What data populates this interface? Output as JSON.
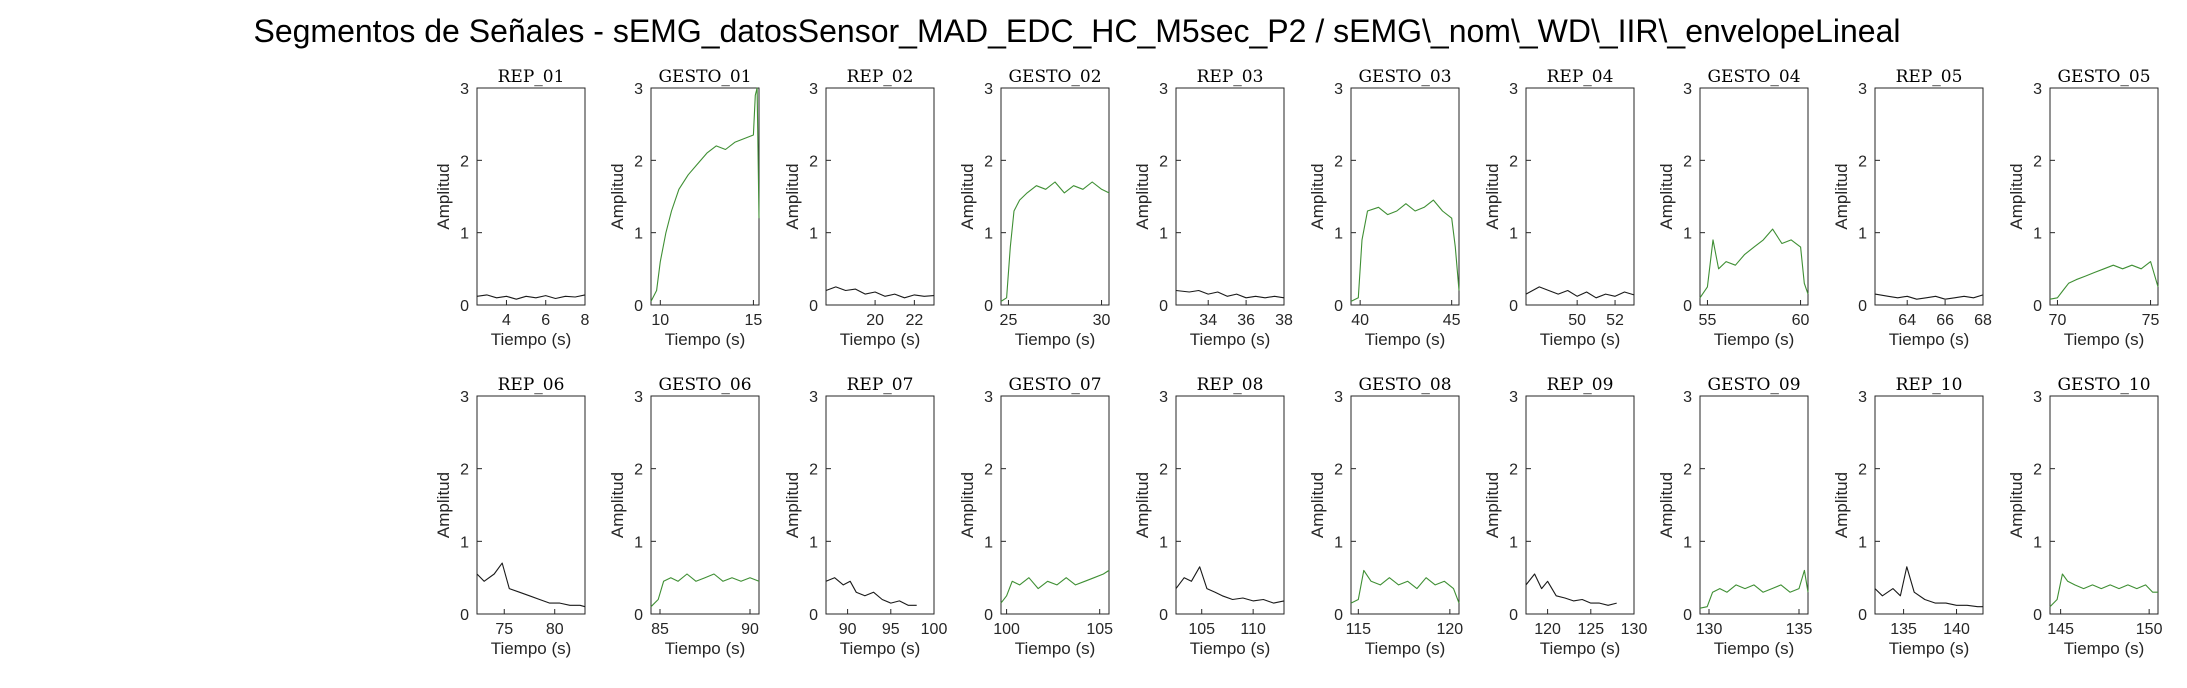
{
  "title": "Segmentos de Señales - sEMG_datosSensor_MAD_EDC_HC_M5sec_P2 / sEMG\\_nom\\_WD\\_IIR\\_envelopeLineal",
  "colors": {
    "rep": "#1a1a1a",
    "gesto": "#3f8f34",
    "axis": "#262626"
  },
  "chart_data": [
    {
      "type": "line",
      "title": "REP_01",
      "xlabel": "Tiempo (s)",
      "ylabel": "Amplitud",
      "xlim": [
        2.5,
        8
      ],
      "ylim": [
        0,
        3
      ],
      "xticks": [
        4,
        6,
        8
      ],
      "yticks": [
        0,
        1,
        2,
        3
      ],
      "kind": "rep",
      "series": [
        {
          "color": "#1a1a1a",
          "x": [
            2.5,
            3,
            3.5,
            4,
            4.5,
            5,
            5.5,
            6,
            6.5,
            7,
            7.5,
            8
          ],
          "y": [
            0.12,
            0.14,
            0.1,
            0.12,
            0.08,
            0.12,
            0.1,
            0.13,
            0.09,
            0.12,
            0.11,
            0.14
          ]
        }
      ]
    },
    {
      "type": "line",
      "title": "GESTO_01",
      "xlabel": "Tiempo (s)",
      "ylabel": "Amplitud",
      "xlim": [
        9.5,
        15.3
      ],
      "ylim": [
        0,
        3
      ],
      "xticks": [
        10,
        15
      ],
      "yticks": [
        0,
        1,
        2,
        3
      ],
      "kind": "gesto",
      "series": [
        {
          "color": "#3f8f34",
          "x": [
            9.5,
            9.8,
            10,
            10.3,
            10.6,
            11,
            11.5,
            12,
            12.5,
            13,
            13.5,
            14,
            14.5,
            15,
            15.1,
            15.2,
            15.3
          ],
          "y": [
            0.05,
            0.2,
            0.6,
            1.0,
            1.3,
            1.6,
            1.8,
            1.95,
            2.1,
            2.2,
            2.15,
            2.25,
            2.3,
            2.35,
            2.9,
            3.0,
            1.2
          ]
        }
      ]
    },
    {
      "type": "line",
      "title": "REP_02",
      "xlabel": "Tiempo (s)",
      "ylabel": "Amplitud",
      "xlim": [
        17.5,
        23
      ],
      "ylim": [
        0,
        3
      ],
      "xticks": [
        20,
        22
      ],
      "yticks": [
        0,
        1,
        2,
        3
      ],
      "kind": "rep",
      "series": [
        {
          "color": "#1a1a1a",
          "x": [
            17.5,
            18,
            18.5,
            19,
            19.5,
            20,
            20.5,
            21,
            21.5,
            22,
            22.5,
            23
          ],
          "y": [
            0.2,
            0.25,
            0.2,
            0.22,
            0.15,
            0.18,
            0.12,
            0.15,
            0.1,
            0.14,
            0.12,
            0.13
          ]
        }
      ]
    },
    {
      "type": "line",
      "title": "GESTO_02",
      "xlabel": "Tiempo (s)",
      "ylabel": "Amplitud",
      "xlim": [
        24.6,
        30.4
      ],
      "ylim": [
        0,
        3
      ],
      "xticks": [
        25,
        30
      ],
      "yticks": [
        0,
        1,
        2,
        3
      ],
      "kind": "gesto",
      "series": [
        {
          "color": "#3f8f34",
          "x": [
            24.6,
            24.9,
            25.1,
            25.3,
            25.6,
            26,
            26.5,
            27,
            27.5,
            28,
            28.5,
            29,
            29.5,
            30,
            30.4
          ],
          "y": [
            0.05,
            0.1,
            0.8,
            1.3,
            1.45,
            1.55,
            1.65,
            1.6,
            1.7,
            1.55,
            1.65,
            1.6,
            1.7,
            1.6,
            1.55
          ]
        }
      ]
    },
    {
      "type": "line",
      "title": "REP_03",
      "xlabel": "Tiempo (s)",
      "ylabel": "Amplitud",
      "xlim": [
        32.3,
        38
      ],
      "ylim": [
        0,
        3
      ],
      "xticks": [
        34,
        36,
        38
      ],
      "yticks": [
        0,
        1,
        2,
        3
      ],
      "kind": "rep",
      "series": [
        {
          "color": "#1a1a1a",
          "x": [
            32.3,
            33,
            33.5,
            34,
            34.5,
            35,
            35.5,
            36,
            36.5,
            37,
            37.5,
            38
          ],
          "y": [
            0.2,
            0.18,
            0.2,
            0.15,
            0.18,
            0.12,
            0.15,
            0.1,
            0.12,
            0.1,
            0.12,
            0.1
          ]
        }
      ]
    },
    {
      "type": "line",
      "title": "GESTO_03",
      "xlabel": "Tiempo (s)",
      "ylabel": "Amplitud",
      "xlim": [
        39.5,
        45.4
      ],
      "ylim": [
        0,
        3
      ],
      "xticks": [
        40,
        45
      ],
      "yticks": [
        0,
        1,
        2,
        3
      ],
      "kind": "gesto",
      "series": [
        {
          "color": "#3f8f34",
          "x": [
            39.5,
            39.9,
            40.1,
            40.4,
            41,
            41.5,
            42,
            42.5,
            43,
            43.5,
            44,
            44.5,
            45,
            45.2,
            45.4
          ],
          "y": [
            0.05,
            0.1,
            0.9,
            1.3,
            1.35,
            1.25,
            1.3,
            1.4,
            1.3,
            1.35,
            1.45,
            1.3,
            1.2,
            0.8,
            0.2
          ]
        }
      ]
    },
    {
      "type": "line",
      "title": "REP_04",
      "xlabel": "Tiempo (s)",
      "ylabel": "Amplitud",
      "xlim": [
        47.3,
        53
      ],
      "ylim": [
        0,
        3
      ],
      "xticks": [
        50,
        52
      ],
      "yticks": [
        0,
        1,
        2,
        3
      ],
      "kind": "rep",
      "series": [
        {
          "color": "#1a1a1a",
          "x": [
            47.3,
            48,
            48.5,
            49,
            49.5,
            50,
            50.5,
            51,
            51.5,
            52,
            52.5,
            53
          ],
          "y": [
            0.15,
            0.25,
            0.2,
            0.15,
            0.2,
            0.12,
            0.18,
            0.1,
            0.15,
            0.12,
            0.18,
            0.14
          ]
        }
      ]
    },
    {
      "type": "line",
      "title": "GESTO_04",
      "xlabel": "Tiempo (s)",
      "ylabel": "Amplitud",
      "xlim": [
        54.6,
        60.4
      ],
      "ylim": [
        0,
        3
      ],
      "xticks": [
        55,
        60
      ],
      "yticks": [
        0,
        1,
        2,
        3
      ],
      "kind": "gesto",
      "series": [
        {
          "color": "#3f8f34",
          "x": [
            54.6,
            55,
            55.3,
            55.6,
            56,
            56.5,
            57,
            57.5,
            58,
            58.5,
            59,
            59.5,
            60,
            60.2,
            60.4
          ],
          "y": [
            0.1,
            0.25,
            0.9,
            0.5,
            0.6,
            0.55,
            0.7,
            0.8,
            0.9,
            1.05,
            0.85,
            0.9,
            0.8,
            0.3,
            0.15
          ]
        }
      ]
    },
    {
      "type": "line",
      "title": "REP_05",
      "xlabel": "Tiempo (s)",
      "ylabel": "Amplitud",
      "xlim": [
        62.3,
        68
      ],
      "ylim": [
        0,
        3
      ],
      "xticks": [
        64,
        66,
        68
      ],
      "yticks": [
        0,
        1,
        2,
        3
      ],
      "kind": "rep",
      "series": [
        {
          "color": "#1a1a1a",
          "x": [
            62.3,
            63,
            63.5,
            64,
            64.5,
            65,
            65.5,
            66,
            66.5,
            67,
            67.5,
            68
          ],
          "y": [
            0.15,
            0.12,
            0.1,
            0.12,
            0.08,
            0.1,
            0.12,
            0.08,
            0.1,
            0.12,
            0.1,
            0.14
          ]
        }
      ]
    },
    {
      "type": "line",
      "title": "GESTO_05",
      "xlabel": "Tiempo (s)",
      "ylabel": "Amplitud",
      "xlim": [
        69.6,
        75.4
      ],
      "ylim": [
        0,
        3
      ],
      "xticks": [
        70,
        75
      ],
      "yticks": [
        0,
        1,
        2,
        3
      ],
      "kind": "gesto",
      "series": [
        {
          "color": "#3f8f34",
          "x": [
            69.6,
            70,
            70.3,
            70.6,
            71,
            71.5,
            72,
            72.5,
            73,
            73.5,
            74,
            74.5,
            75,
            75.4
          ],
          "y": [
            0.08,
            0.1,
            0.2,
            0.3,
            0.35,
            0.4,
            0.45,
            0.5,
            0.55,
            0.5,
            0.55,
            0.5,
            0.6,
            0.25
          ]
        }
      ]
    },
    {
      "type": "line",
      "title": "REP_06",
      "xlabel": "Tiempo (s)",
      "ylabel": "Amplitud",
      "xlim": [
        72.3,
        83
      ],
      "ylim": [
        0,
        3
      ],
      "xticks": [
        75,
        80
      ],
      "yticks": [
        0,
        1,
        2,
        3
      ],
      "kind": "rep",
      "series": [
        {
          "color": "#1a1a1a",
          "x": [
            72.3,
            73,
            74,
            74.8,
            75.5,
            76.5,
            77.5,
            78.5,
            79.5,
            80.5,
            81.5,
            82.5,
            83
          ],
          "y": [
            0.55,
            0.45,
            0.55,
            0.7,
            0.35,
            0.3,
            0.25,
            0.2,
            0.15,
            0.15,
            0.12,
            0.12,
            0.1
          ]
        }
      ]
    },
    {
      "type": "line",
      "title": "GESTO_06",
      "xlabel": "Tiempo (s)",
      "ylabel": "Amplitud",
      "xlim": [
        84.5,
        90.5
      ],
      "ylim": [
        0,
        3
      ],
      "xticks": [
        85,
        90
      ],
      "yticks": [
        0,
        1,
        2,
        3
      ],
      "kind": "gesto",
      "series": [
        {
          "color": "#3f8f34",
          "x": [
            84.5,
            84.9,
            85.2,
            85.6,
            86,
            86.5,
            87,
            87.5,
            88,
            88.5,
            89,
            89.5,
            90,
            90.5
          ],
          "y": [
            0.1,
            0.2,
            0.45,
            0.5,
            0.45,
            0.55,
            0.45,
            0.5,
            0.55,
            0.45,
            0.5,
            0.45,
            0.5,
            0.45
          ]
        }
      ]
    },
    {
      "type": "line",
      "title": "REP_07",
      "xlabel": "Tiempo (s)",
      "ylabel": "Amplitud",
      "xlim": [
        87.5,
        100
      ],
      "ylim": [
        0,
        3
      ],
      "xticks": [
        90,
        95,
        100
      ],
      "yticks": [
        0,
        1,
        2,
        3
      ],
      "kind": "rep",
      "series": [
        {
          "color": "#1a1a1a",
          "x": [
            87.5,
            88.5,
            89.5,
            90.3,
            91,
            92,
            93,
            94,
            95,
            96,
            97,
            98
          ],
          "y": [
            0.45,
            0.5,
            0.4,
            0.45,
            0.3,
            0.25,
            0.3,
            0.2,
            0.15,
            0.18,
            0.12,
            0.12
          ]
        }
      ]
    },
    {
      "type": "line",
      "title": "GESTO_07",
      "xlabel": "Tiempo (s)",
      "ylabel": "Amplitud",
      "xlim": [
        99.7,
        105.5
      ],
      "ylim": [
        0,
        3
      ],
      "xticks": [
        100,
        105
      ],
      "yticks": [
        0,
        1,
        2,
        3
      ],
      "kind": "gesto",
      "series": [
        {
          "color": "#3f8f34",
          "x": [
            99.7,
            100,
            100.3,
            100.7,
            101.2,
            101.7,
            102.2,
            102.7,
            103.2,
            103.7,
            104.2,
            104.7,
            105.2,
            105.5
          ],
          "y": [
            0.15,
            0.25,
            0.45,
            0.4,
            0.5,
            0.35,
            0.45,
            0.4,
            0.5,
            0.4,
            0.45,
            0.5,
            0.55,
            0.6
          ]
        }
      ]
    },
    {
      "type": "line",
      "title": "REP_08",
      "xlabel": "Tiempo (s)",
      "ylabel": "Amplitud",
      "xlim": [
        102.5,
        113
      ],
      "ylim": [
        0,
        3
      ],
      "xticks": [
        105,
        110
      ],
      "yticks": [
        0,
        1,
        2,
        3
      ],
      "kind": "rep",
      "series": [
        {
          "color": "#1a1a1a",
          "x": [
            102.5,
            103.3,
            104,
            104.8,
            105.5,
            106.3,
            107,
            108,
            109,
            110,
            111,
            112,
            113
          ],
          "y": [
            0.35,
            0.5,
            0.45,
            0.65,
            0.35,
            0.3,
            0.25,
            0.2,
            0.22,
            0.18,
            0.2,
            0.15,
            0.18
          ]
        }
      ]
    },
    {
      "type": "line",
      "title": "GESTO_08",
      "xlabel": "Tiempo (s)",
      "ylabel": "Amplitud",
      "xlim": [
        114.6,
        120.5
      ],
      "ylim": [
        0,
        3
      ],
      "xticks": [
        115,
        120
      ],
      "yticks": [
        0,
        1,
        2,
        3
      ],
      "kind": "gesto",
      "series": [
        {
          "color": "#3f8f34",
          "x": [
            114.6,
            115,
            115.3,
            115.7,
            116.2,
            116.7,
            117.2,
            117.7,
            118.2,
            118.7,
            119.2,
            119.7,
            120.2,
            120.5
          ],
          "y": [
            0.15,
            0.2,
            0.6,
            0.45,
            0.4,
            0.5,
            0.4,
            0.45,
            0.35,
            0.5,
            0.4,
            0.45,
            0.35,
            0.15
          ]
        }
      ]
    },
    {
      "type": "line",
      "title": "REP_09",
      "xlabel": "Tiempo (s)",
      "ylabel": "Amplitud",
      "xlim": [
        117.5,
        130
      ],
      "ylim": [
        0,
        3
      ],
      "xticks": [
        120,
        125,
        130
      ],
      "yticks": [
        0,
        1,
        2,
        3
      ],
      "kind": "rep",
      "series": [
        {
          "color": "#1a1a1a",
          "x": [
            117.5,
            118.5,
            119.3,
            120,
            121,
            122,
            123,
            124,
            125,
            126,
            127,
            128
          ],
          "y": [
            0.4,
            0.55,
            0.35,
            0.45,
            0.25,
            0.22,
            0.18,
            0.2,
            0.15,
            0.15,
            0.12,
            0.15
          ]
        }
      ]
    },
    {
      "type": "line",
      "title": "GESTO_09",
      "xlabel": "Tiempo (s)",
      "ylabel": "Amplitud",
      "xlim": [
        129.5,
        135.5
      ],
      "ylim": [
        0,
        3
      ],
      "xticks": [
        130,
        135
      ],
      "yticks": [
        0,
        1,
        2,
        3
      ],
      "kind": "gesto",
      "series": [
        {
          "color": "#3f8f34",
          "x": [
            129.5,
            129.9,
            130.2,
            130.6,
            131,
            131.5,
            132,
            132.5,
            133,
            133.5,
            134,
            134.5,
            135,
            135.3,
            135.5
          ],
          "y": [
            0.08,
            0.1,
            0.3,
            0.35,
            0.3,
            0.4,
            0.35,
            0.4,
            0.3,
            0.35,
            0.4,
            0.3,
            0.35,
            0.6,
            0.3
          ]
        }
      ]
    },
    {
      "type": "line",
      "title": "REP_10",
      "xlabel": "Tiempo (s)",
      "ylabel": "Amplitud",
      "xlim": [
        132.3,
        142.5
      ],
      "ylim": [
        0,
        3
      ],
      "xticks": [
        135,
        140
      ],
      "yticks": [
        0,
        1,
        2,
        3
      ],
      "kind": "rep",
      "series": [
        {
          "color": "#1a1a1a",
          "x": [
            132.3,
            133,
            134,
            134.7,
            135.3,
            136,
            137,
            138,
            139,
            140,
            141,
            142,
            142.5
          ],
          "y": [
            0.35,
            0.25,
            0.35,
            0.25,
            0.65,
            0.3,
            0.2,
            0.15,
            0.15,
            0.12,
            0.12,
            0.1,
            0.1
          ]
        }
      ]
    },
    {
      "type": "line",
      "title": "GESTO_10",
      "xlabel": "Tiempo (s)",
      "ylabel": "Amplitud",
      "xlim": [
        144.4,
        150.5
      ],
      "ylim": [
        0,
        3
      ],
      "xticks": [
        145,
        150
      ],
      "yticks": [
        0,
        1,
        2,
        3
      ],
      "kind": "gesto",
      "series": [
        {
          "color": "#3f8f34",
          "x": [
            144.4,
            144.8,
            145.1,
            145.4,
            145.8,
            146.3,
            146.8,
            147.3,
            147.8,
            148.3,
            148.8,
            149.3,
            149.8,
            150.2,
            150.5
          ],
          "y": [
            0.1,
            0.2,
            0.55,
            0.45,
            0.4,
            0.35,
            0.4,
            0.35,
            0.4,
            0.35,
            0.4,
            0.35,
            0.4,
            0.3,
            0.3
          ]
        }
      ]
    }
  ]
}
